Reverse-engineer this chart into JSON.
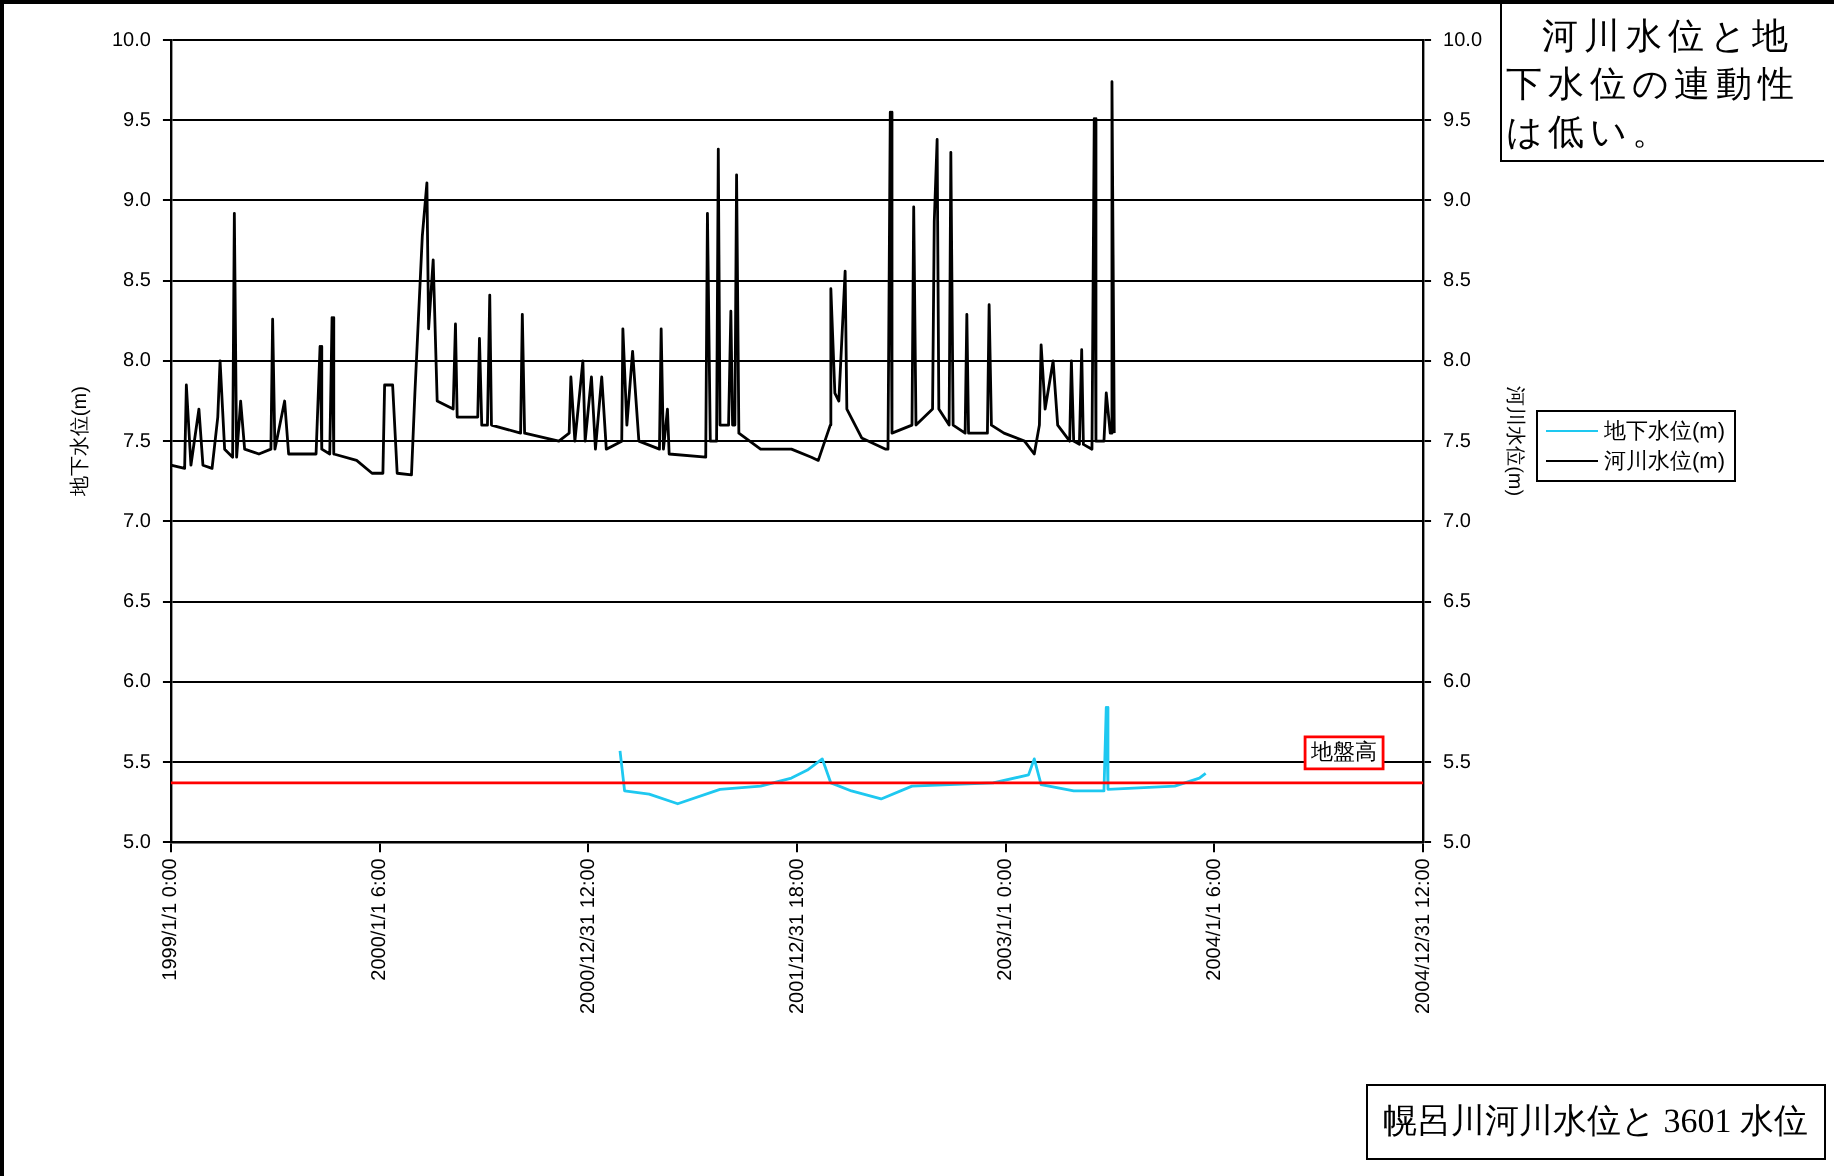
{
  "chart_data": {
    "type": "line",
    "title": "幌呂川河川水位と 3601 水位",
    "ylabel": "地下水位(m)",
    "y2label": "河川水位(m)",
    "annotations": [
      "河川水位と地下水位の連動性は低い。"
    ],
    "xlim": [
      "1999-01-01T00:00",
      "2004-12-31T12:00"
    ],
    "xticks": [
      {
        "value": "1999-01-01T00:00",
        "label": "1999/1/1 0:00"
      },
      {
        "value": "2000-01-01T06:00",
        "label": "2000/1/1 6:00"
      },
      {
        "value": "2000-12-31T12:00",
        "label": "2000/12/31 12:00"
      },
      {
        "value": "2001-12-31T18:00",
        "label": "2001/12/31 18:00"
      },
      {
        "value": "2003-01-01T00:00",
        "label": "2003/1/1 0:00"
      },
      {
        "value": "2004-01-01T06:00",
        "label": "2004/1/1 6:00"
      },
      {
        "value": "2004-12-31T12:00",
        "label": "2004/12/31 12:00"
      }
    ],
    "ylim": [
      5,
      10
    ],
    "yticks": [
      {
        "value": 5,
        "label": "5.0"
      },
      {
        "value": 5.5,
        "label": "5.5"
      },
      {
        "value": 6,
        "label": "6.0"
      },
      {
        "value": 6.5,
        "label": "6.5"
      },
      {
        "value": 7,
        "label": "7.0"
      },
      {
        "value": 7.5,
        "label": "7.5"
      },
      {
        "value": 8,
        "label": "8.0"
      },
      {
        "value": 8.5,
        "label": "8.5"
      },
      {
        "value": 9,
        "label": "9.0"
      },
      {
        "value": 9.5,
        "label": "9.5"
      },
      {
        "value": 10,
        "label": "10.0"
      }
    ],
    "y2lim": [
      5,
      10
    ],
    "y2ticks": [
      {
        "value": 5,
        "label": "5.0"
      },
      {
        "value": 5.5,
        "label": "5.5"
      },
      {
        "value": 6,
        "label": "6.0"
      },
      {
        "value": 6.5,
        "label": "6.5"
      },
      {
        "value": 7,
        "label": "7.0"
      },
      {
        "value": 7.5,
        "label": "7.5"
      },
      {
        "value": 8,
        "label": "8.0"
      },
      {
        "value": 8.5,
        "label": "8.5"
      },
      {
        "value": 9,
        "label": "9.0"
      },
      {
        "value": 9.5,
        "label": "9.5"
      },
      {
        "value": 10,
        "label": "10.0"
      }
    ],
    "grid": "y",
    "legend": "right",
    "marker": "none",
    "line_style": "solid",
    "ref_lines": [
      {
        "axis": "y",
        "value": 5.37,
        "label": "地盤高",
        "color": "#ff0000"
      }
    ],
    "series": [
      {
        "name": "地下水位(m)",
        "color": "#1ec8f0",
        "x": [
          "2001-02-25",
          "2001-03-05",
          "2001-04-17",
          "2001-06-06",
          "2001-08-19",
          "2001-10-29",
          "2001-12-22",
          "2002-01-19",
          "2002-02-14",
          "2002-03-01",
          "2002-04-06",
          "2002-05-28",
          "2002-07-21",
          "2002-12-10",
          "2003-02-10",
          "2003-02-20",
          "2003-03-04",
          "2003-04-30",
          "2003-06-22",
          "2003-06-26",
          "2003-06-29",
          "2003-10-24",
          "2003-12-06",
          "2003-12-17"
        ],
        "values": [
          5.57,
          5.32,
          5.3,
          5.24,
          5.33,
          5.35,
          5.4,
          5.45,
          5.52,
          5.37,
          5.32,
          5.27,
          5.35,
          5.37,
          5.42,
          5.52,
          5.36,
          5.32,
          5.32,
          5.84,
          5.33,
          5.35,
          5.4,
          5.43
        ]
      },
      {
        "name": "河川水位(m)",
        "color": "#000000",
        "axis": "y2",
        "x": [
          "1999-01-01",
          "1999-01-25",
          "1999-01-28",
          "1999-02-05",
          "1999-02-19",
          "1999-02-26",
          "1999-03-14",
          "1999-03-24",
          "1999-03-28",
          "1999-04-05",
          "1999-04-19",
          "1999-04-22",
          "1999-04-26",
          "1999-05-03",
          "1999-05-10",
          "1999-06-04",
          "1999-06-25",
          "1999-06-28",
          "1999-07-02",
          "1999-07-19",
          "1999-07-26",
          "1999-09-12",
          "1999-09-19",
          "1999-09-22",
          "1999-10-06",
          "1999-10-10",
          "1999-10-13",
          "1999-11-22",
          "1999-12-19",
          "2000-01-07",
          "2000-01-10",
          "2000-01-24",
          "2000-02-01",
          "2000-02-26",
          "2000-03-03",
          "2000-03-16",
          "2000-03-24",
          "2000-03-27",
          "2000-04-04",
          "2000-04-11",
          "2000-05-09",
          "2000-05-13",
          "2000-05-16",
          "2000-06-21",
          "2000-06-24",
          "2000-06-28",
          "2000-07-08",
          "2000-07-12",
          "2000-07-15",
          "2000-09-04",
          "2000-09-07",
          "2000-09-11",
          "2000-11-10",
          "2000-11-28",
          "2000-12-01",
          "2000-12-08",
          "2000-12-22",
          "2000-12-26",
          "2001-01-06",
          "2001-01-13",
          "2001-01-24",
          "2001-02-01",
          "2001-02-28",
          "2001-03-02",
          "2001-03-09",
          "2001-03-19",
          "2001-03-30",
          "2001-05-05",
          "2001-05-08",
          "2001-05-12",
          "2001-05-19",
          "2001-05-22",
          "2001-07-25",
          "2001-07-28",
          "2001-08-02",
          "2001-08-13",
          "2001-08-16",
          "2001-08-19",
          "2001-09-03",
          "2001-09-07",
          "2001-09-10",
          "2001-09-14",
          "2001-09-17",
          "2001-09-21",
          "2001-10-29",
          "2001-12-22",
          "2002-01-26",
          "2002-02-07",
          "2002-02-28",
          "2002-03-01",
          "2002-03-08",
          "2002-03-15",
          "2002-03-26",
          "2002-03-29",
          "2002-04-24",
          "2002-06-05",
          "2002-06-09",
          "2002-06-13",
          "2002-06-16",
          "2002-07-21",
          "2002-07-24",
          "2002-07-28",
          "2002-08-26",
          "2002-08-29",
          "2002-09-03",
          "2002-09-06",
          "2002-09-24",
          "2002-09-27",
          "2002-10-01",
          "2002-10-22",
          "2002-10-25",
          "2002-10-28",
          "2002-11-30",
          "2002-12-03",
          "2002-12-07",
          "2002-12-29",
          "2003-02-03",
          "2003-02-20",
          "2003-03-01",
          "2003-03-04",
          "2003-03-11",
          "2003-03-25",
          "2003-04-02",
          "2003-04-23",
          "2003-04-26",
          "2003-04-30",
          "2003-05-10",
          "2003-05-14",
          "2003-05-17",
          "2003-06-01",
          "2003-06-05",
          "2003-06-08",
          "2003-06-22",
          "2003-06-26",
          "2003-07-03",
          "2003-07-06",
          "2003-07-10"
        ],
        "values": [
          7.35,
          7.33,
          7.85,
          7.35,
          7.7,
          7.35,
          7.33,
          7.65,
          8.0,
          7.45,
          7.4,
          8.92,
          7.4,
          7.75,
          7.45,
          7.42,
          7.45,
          8.26,
          7.45,
          7.75,
          7.42,
          7.42,
          8.09,
          7.45,
          7.42,
          8.27,
          7.42,
          7.38,
          7.3,
          7.3,
          7.85,
          7.85,
          7.3,
          7.29,
          7.8,
          8.78,
          9.11,
          8.2,
          8.63,
          7.75,
          7.7,
          8.23,
          7.65,
          7.65,
          8.14,
          7.6,
          7.6,
          8.41,
          7.6,
          7.55,
          8.29,
          7.55,
          7.5,
          7.55,
          7.9,
          7.5,
          8.0,
          7.5,
          7.9,
          7.45,
          7.9,
          7.45,
          7.5,
          8.2,
          7.6,
          8.06,
          7.5,
          7.45,
          8.2,
          7.45,
          7.7,
          7.42,
          7.4,
          8.92,
          7.5,
          7.5,
          9.32,
          7.6,
          7.6,
          8.31,
          7.6,
          7.6,
          9.16,
          7.55,
          7.45,
          7.45,
          7.4,
          7.38,
          7.6,
          8.45,
          7.8,
          7.75,
          8.56,
          7.7,
          7.52,
          7.45,
          7.45,
          9.55,
          7.55,
          7.6,
          8.96,
          7.6,
          7.7,
          8.87,
          9.38,
          7.7,
          7.6,
          9.3,
          7.6,
          7.55,
          8.29,
          7.55,
          7.55,
          8.35,
          7.6,
          7.55,
          7.5,
          7.42,
          7.6,
          8.1,
          7.7,
          8.0,
          7.6,
          7.5,
          8.0,
          7.5,
          7.48,
          8.07,
          7.48,
          7.45,
          9.51,
          7.5,
          7.5,
          7.8,
          7.55,
          9.74,
          7.55
        ]
      }
    ]
  }
}
